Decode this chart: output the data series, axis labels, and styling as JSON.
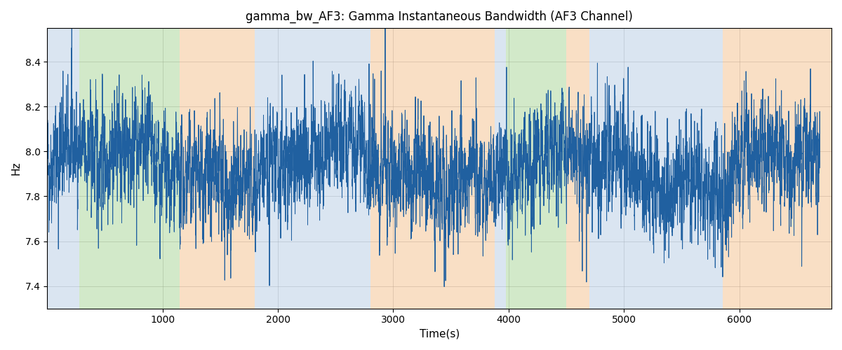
{
  "title": "gamma_bw_AF3: Gamma Instantaneous Bandwidth (AF3 Channel)",
  "xlabel": "Time(s)",
  "ylabel": "Hz",
  "ylim": [
    7.3,
    8.55
  ],
  "xlim": [
    0,
    6800
  ],
  "line_color": "#2060a0",
  "line_width": 0.7,
  "background_color": "#ffffff",
  "grid_color": "#888888",
  "grid_alpha": 0.4,
  "bands": [
    {
      "xmin": 0,
      "xmax": 280,
      "color": "#adc6e0",
      "alpha": 0.45
    },
    {
      "xmin": 280,
      "xmax": 1150,
      "color": "#90c878",
      "alpha": 0.4
    },
    {
      "xmin": 1150,
      "xmax": 1800,
      "color": "#f0b070",
      "alpha": 0.4
    },
    {
      "xmin": 1800,
      "xmax": 2800,
      "color": "#adc6e0",
      "alpha": 0.45
    },
    {
      "xmin": 2800,
      "xmax": 3880,
      "color": "#f0b070",
      "alpha": 0.4
    },
    {
      "xmin": 3880,
      "xmax": 3980,
      "color": "#adc6e0",
      "alpha": 0.45
    },
    {
      "xmin": 3980,
      "xmax": 4500,
      "color": "#90c878",
      "alpha": 0.4
    },
    {
      "xmin": 4500,
      "xmax": 4700,
      "color": "#f0b070",
      "alpha": 0.4
    },
    {
      "xmin": 4700,
      "xmax": 5780,
      "color": "#adc6e0",
      "alpha": 0.45
    },
    {
      "xmin": 5780,
      "xmax": 5860,
      "color": "#adc6e0",
      "alpha": 0.45
    },
    {
      "xmin": 5860,
      "xmax": 6800,
      "color": "#f0b070",
      "alpha": 0.4
    }
  ],
  "seed": 42,
  "n_points": 6700,
  "t_start": 0,
  "t_end": 6700,
  "base_value": 7.93,
  "noise_amplitude": 0.13,
  "slow_amplitude": 0.08,
  "slow_period": 2000
}
